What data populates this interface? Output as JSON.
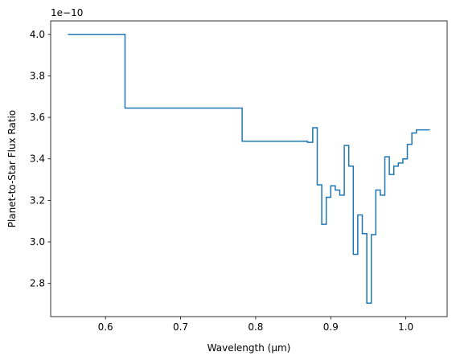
{
  "chart_data": {
    "type": "line",
    "drawstyle": "steps-post",
    "xlabel": "Wavelength (µm)",
    "ylabel": "Planet-to-Star Flux Ratio",
    "y_offset_text": "1e−10",
    "y_scale": 1e-10,
    "xlim": [
      0.527,
      1.055
    ],
    "ylim": [
      2.64,
      4.065
    ],
    "x_ticks": [
      0.6,
      0.7,
      0.8,
      0.9,
      1.0
    ],
    "x_tick_labels": [
      "0.6",
      "0.7",
      "0.8",
      "0.9",
      "1.0"
    ],
    "y_ticks": [
      2.8,
      3.0,
      3.2,
      3.4,
      3.6,
      3.8,
      4.0
    ],
    "y_tick_labels": [
      "2.8",
      "3.0",
      "3.2",
      "3.4",
      "3.6",
      "3.8",
      "4.0"
    ],
    "grid": false,
    "line_color": "#1f77b4",
    "series": [
      {
        "x": [
          0.55,
          0.626,
          0.782,
          0.869,
          0.876,
          0.882,
          0.888,
          0.894,
          0.9,
          0.906,
          0.912,
          0.918,
          0.924,
          0.93,
          0.936,
          0.942,
          0.948,
          0.954,
          0.96,
          0.966,
          0.972,
          0.978,
          0.984,
          0.99,
          0.996,
          1.002,
          1.008,
          1.014,
          1.02,
          1.026,
          1.032
        ],
        "y": [
          4.0,
          3.645,
          3.485,
          3.48,
          3.55,
          3.275,
          3.085,
          3.215,
          3.27,
          3.25,
          3.225,
          3.465,
          3.365,
          2.94,
          3.13,
          3.04,
          2.705,
          3.035,
          3.25,
          3.225,
          3.41,
          3.325,
          3.365,
          3.38,
          3.4,
          3.47,
          3.525,
          3.54,
          3.54,
          3.54,
          3.54
        ]
      }
    ]
  }
}
